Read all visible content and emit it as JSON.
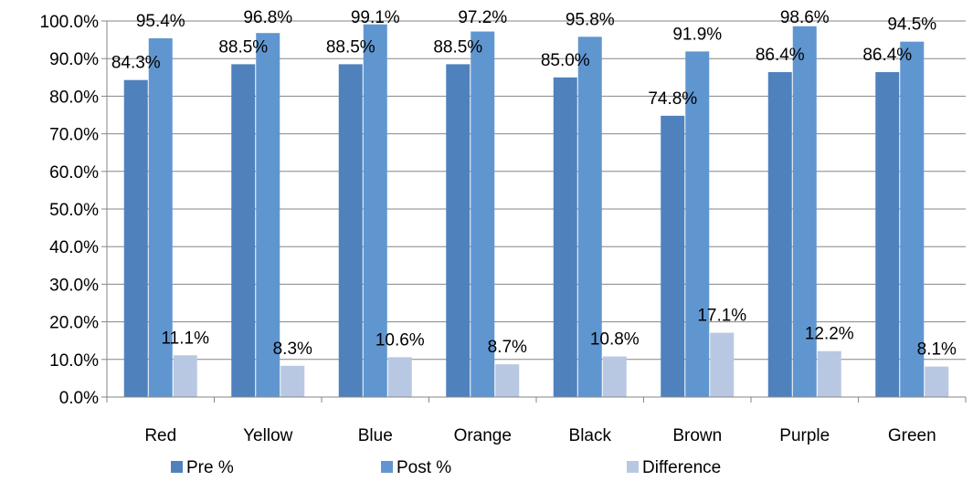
{
  "chart_data": {
    "type": "bar",
    "categories": [
      "Red",
      "Yellow",
      "Blue",
      "Orange",
      "Black",
      "Brown",
      "Purple",
      "Green"
    ],
    "series": [
      {
        "name": "Pre %",
        "color": "#4F81BD",
        "values": [
          84.3,
          88.5,
          88.5,
          88.5,
          85.0,
          74.8,
          86.4,
          86.4
        ],
        "labels": [
          "84.3%",
          "88.5%",
          "88.5%",
          "88.5%",
          "85.0%",
          "74.8%",
          "86.4%",
          "86.4%"
        ]
      },
      {
        "name": "Post %",
        "color": "#6096D0",
        "values": [
          95.4,
          96.8,
          99.1,
          97.2,
          95.8,
          91.9,
          98.6,
          94.5
        ],
        "labels": [
          "95.4%",
          "96.8%",
          "99.1%",
          "97.2%",
          "95.8%",
          "91.9%",
          "98.6%",
          "94.5%"
        ]
      },
      {
        "name": "Difference",
        "color": "#B9C8E2",
        "values": [
          11.1,
          8.3,
          10.6,
          8.7,
          10.8,
          17.1,
          12.2,
          8.1
        ],
        "labels": [
          "11.1%",
          "8.3%",
          "10.6%",
          "8.7%",
          "10.8%",
          "17.1%",
          "12.2%",
          "8.1%"
        ]
      }
    ],
    "ylim": [
      0,
      100
    ],
    "yticks": [
      0,
      10,
      20,
      30,
      40,
      50,
      60,
      70,
      80,
      90,
      100
    ],
    "ytick_labels": [
      "0.0%",
      "10.0%",
      "20.0%",
      "30.0%",
      "40.0%",
      "50.0%",
      "60.0%",
      "70.0%",
      "80.0%",
      "90.0%",
      "100.0%"
    ],
    "grid": true,
    "legend_position": "bottom",
    "title": "",
    "xlabel": "",
    "ylabel": ""
  }
}
